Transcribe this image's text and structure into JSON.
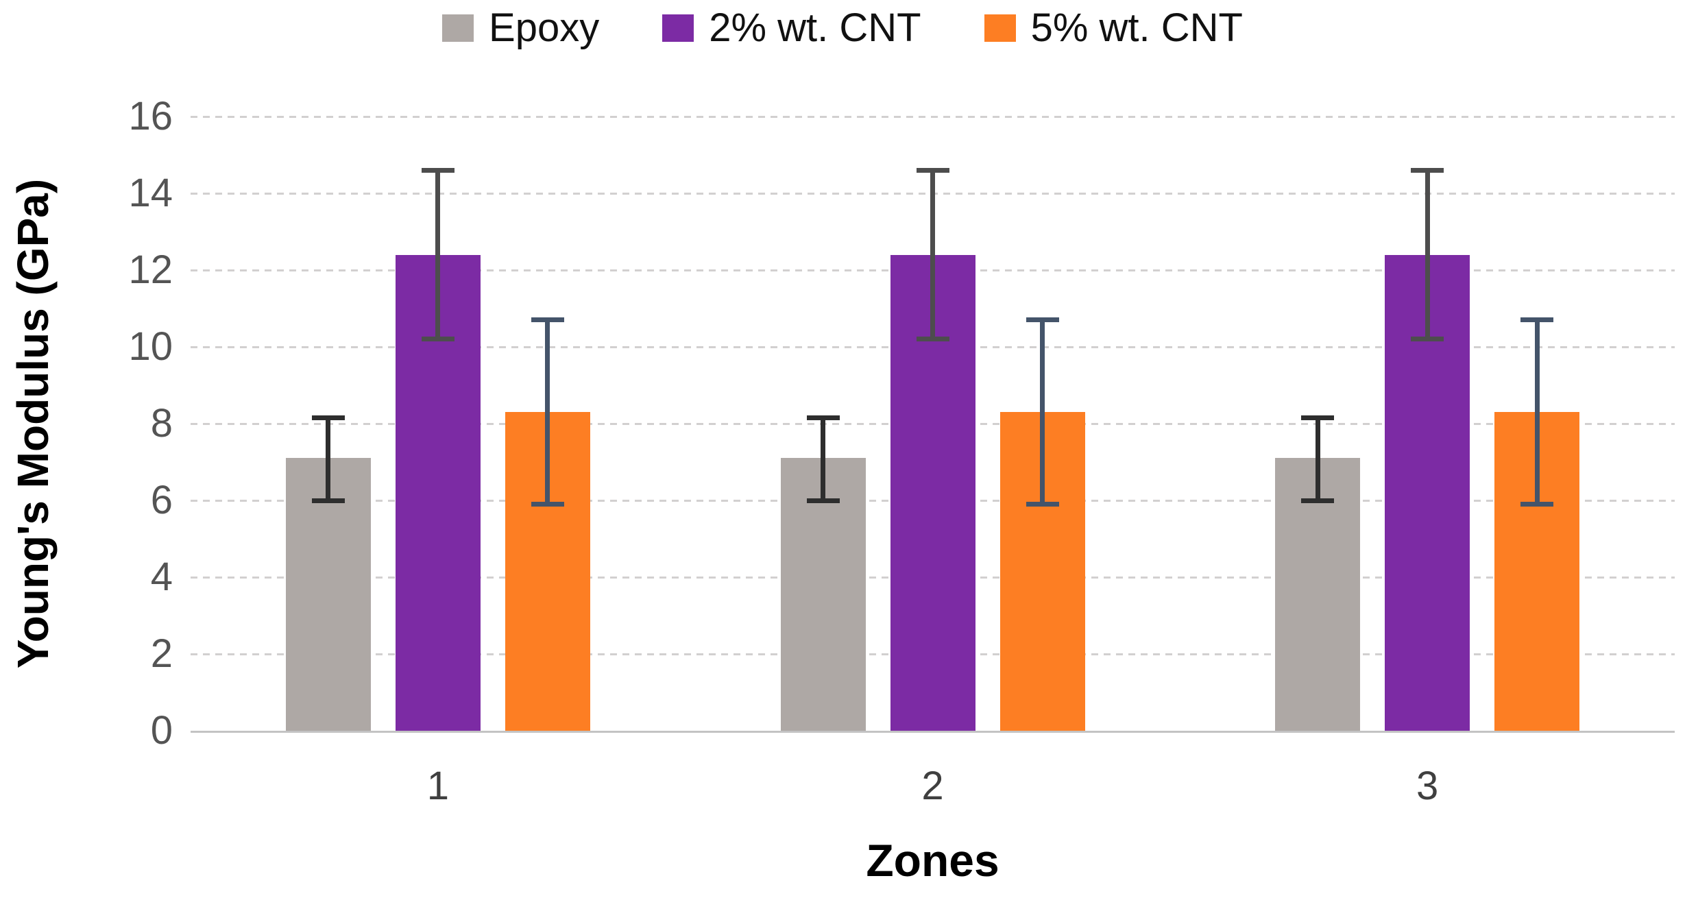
{
  "chart_data": {
    "type": "bar",
    "title": "",
    "xlabel": "Zones",
    "ylabel": "Young's Modulus (GPa)",
    "categories": [
      "1",
      "2",
      "3"
    ],
    "series": [
      {
        "name": "Epoxy",
        "color": "#AEA8A5",
        "error_color": "#2e2e2e",
        "values": [
          7.1,
          7.1,
          7.1
        ],
        "error_low": [
          6.0,
          6.0,
          6.0
        ],
        "error_high": [
          8.15,
          8.15,
          8.15
        ]
      },
      {
        "name": "2% wt. CNT",
        "color": "#7C2BA4",
        "error_color": "#4d4d4d",
        "values": [
          12.4,
          12.4,
          12.4
        ],
        "error_low": [
          10.2,
          10.2,
          10.2
        ],
        "error_high": [
          14.6,
          14.6,
          14.6
        ]
      },
      {
        "name": "5% wt. CNT",
        "color": "#FD7E23",
        "error_color": "#44546A",
        "values": [
          8.3,
          8.3,
          8.3
        ],
        "error_low": [
          5.9,
          5.9,
          5.9
        ],
        "error_high": [
          10.7,
          10.7,
          10.7
        ]
      }
    ],
    "ylim": [
      0,
      16
    ],
    "yticks": [
      0,
      2,
      4,
      6,
      8,
      10,
      12,
      14,
      16
    ],
    "grid": "horizontal-dashed",
    "legend_position": "top-center",
    "axis_colors": {
      "gridline": "#d2d0d0",
      "axis_line": "#c3c3c3",
      "tick_label": "#545454",
      "axis_title": "#000000"
    }
  }
}
